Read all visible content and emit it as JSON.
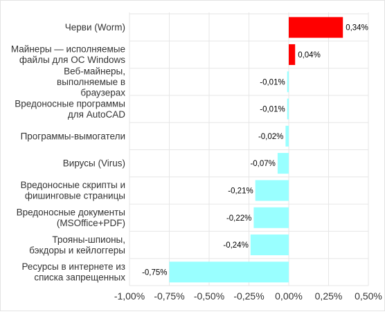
{
  "chart_data": {
    "type": "bar",
    "orientation": "horizontal",
    "categories": [
      "Черви (Worm)",
      "Майнеры — исполняемые файлы для ОС Windows",
      "Веб-майнеры, выполняемые в браузерах",
      "Вредоносные программы для AutoCAD",
      "Программы-вымогатели",
      "Вирусы (Virus)",
      "Вредоносные скрипты и фишинговые страницы",
      "Вредоносные документы (MSOffice+PDF)",
      "Трояны-шпионы, бэкдоры и кейлоггеры",
      "Ресурсы в интернете из списка запрещенных"
    ],
    "category_lines": [
      [
        "Черви (Worm)"
      ],
      [
        "Майнеры — исполняемые",
        "файлы для ОС Windows"
      ],
      [
        "Веб-майнеры,",
        "выполняемые в",
        "браузерах"
      ],
      [
        "Вредоносные программы",
        "для AutoCAD"
      ],
      [
        "Программы-вымогатели"
      ],
      [
        "Вирусы (Virus)"
      ],
      [
        "Вредоносные скрипты и",
        "фишинговые страницы"
      ],
      [
        "Вредоносные документы",
        "(MSOffice+PDF)"
      ],
      [
        "Трояны-шпионы,",
        "бэкдоры и кейлоггеры"
      ],
      [
        "Ресурсы в интернете из",
        "списка запрещенных"
      ]
    ],
    "values": [
      0.34,
      0.04,
      -0.01,
      -0.01,
      -0.02,
      -0.07,
      -0.21,
      -0.22,
      -0.24,
      -0.75
    ],
    "value_labels": [
      "0,34%",
      "0,04%",
      "-0,01%",
      "-0,01%",
      "-0,02%",
      "-0,07%",
      "-0,21%",
      "-0,22%",
      "-0,24%",
      "-0,75%"
    ],
    "xlim": [
      -1.0,
      0.5
    ],
    "x_ticks": [
      -1.0,
      -0.75,
      -0.5,
      -0.25,
      0.0,
      0.25,
      0.5
    ],
    "x_tick_labels": [
      "-1,00%",
      "-0,75%",
      "-0,50%",
      "-0,25%",
      "0,00%",
      "0,25%",
      "0,50%"
    ],
    "grid": true,
    "legend": "none",
    "title": "",
    "xlabel": "",
    "ylabel": "",
    "colors": {
      "positive": "#ff0000",
      "negative": "#99ffff",
      "grid": "#e6e6e6",
      "text": "#333333",
      "value_label": "#000000"
    }
  }
}
